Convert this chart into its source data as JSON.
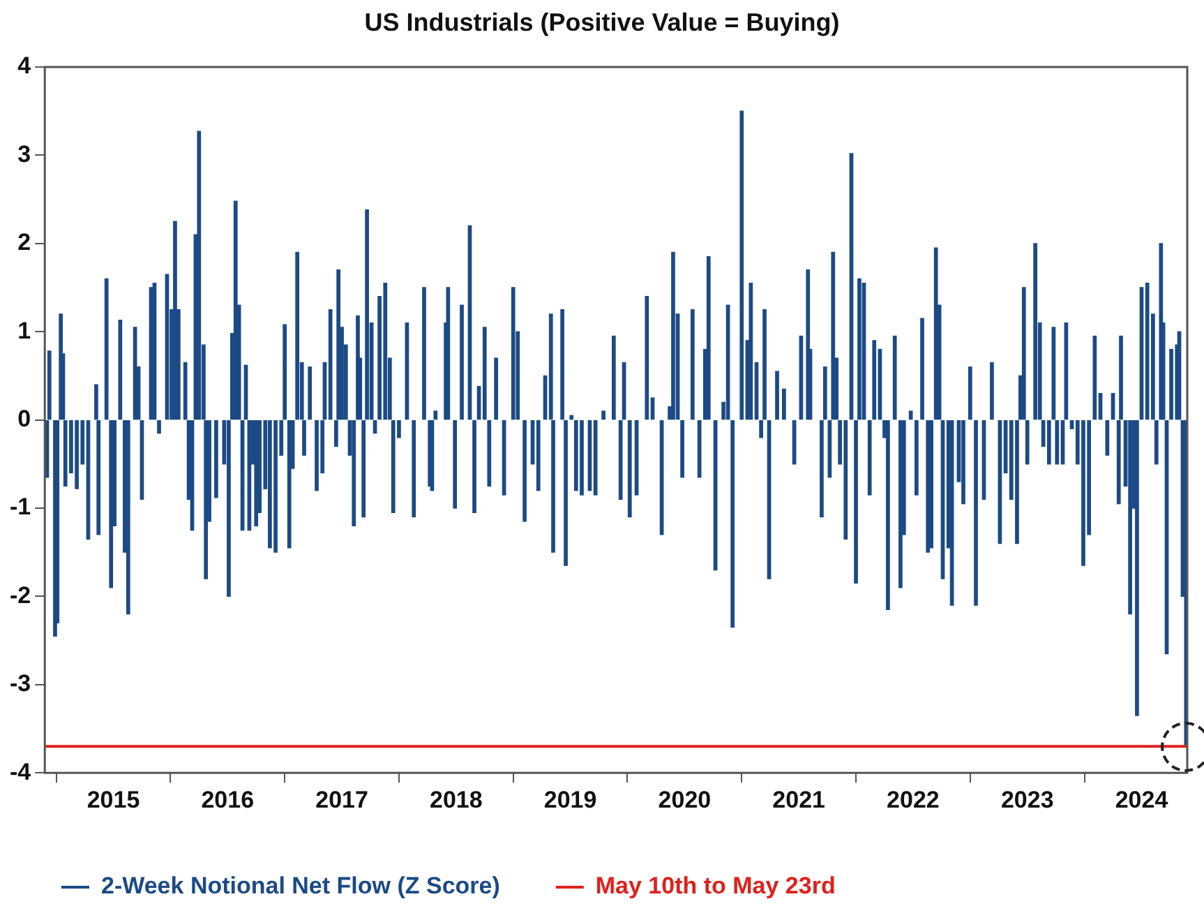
{
  "chart_data": {
    "type": "bar",
    "title": "US Industrials (Positive Value = Buying)",
    "x": [
      2014.42,
      2014.44,
      2014.49,
      2014.51,
      2014.54,
      2014.56,
      2014.58,
      2014.63,
      2014.68,
      2014.73,
      2014.78,
      2014.85,
      2014.87,
      2014.94,
      2014.98,
      2015.01,
      2015.06,
      2015.1,
      2015.13,
      2015.19,
      2015.22,
      2015.25,
      2015.33,
      2015.36,
      2015.4,
      2015.47,
      2015.51,
      2015.54,
      2015.57,
      2015.63,
      2015.66,
      2015.69,
      2015.72,
      2015.75,
      2015.79,
      2015.81,
      2015.84,
      2015.9,
      2015.97,
      2016.01,
      2016.04,
      2016.07,
      2016.1,
      2016.13,
      2016.16,
      2016.19,
      2016.22,
      2016.25,
      2016.28,
      2016.33,
      2016.37,
      2016.42,
      2016.47,
      2016.5,
      2016.54,
      2016.57,
      2016.61,
      2016.65,
      2016.67,
      2016.72,
      2016.78,
      2016.83,
      2016.85,
      2016.9,
      2016.95,
      2016.97,
      2017.0,
      2017.035,
      2017.07,
      2017.105,
      2017.14,
      2017.16,
      2017.19,
      2017.22,
      2017.26,
      2017.29,
      2017.33,
      2017.38,
      2017.42,
      2017.45,
      2017.5,
      2017.57,
      2017.63,
      2017.72,
      2017.77,
      2017.79,
      2017.82,
      2017.91,
      2017.93,
      2017.99,
      2018.05,
      2018.12,
      2018.16,
      2018.2,
      2018.25,
      2018.29,
      2018.35,
      2018.42,
      2018.5,
      2018.54,
      2018.6,
      2018.67,
      2018.72,
      2018.78,
      2018.83,
      2018.85,
      2018.93,
      2018.96,
      2019.01,
      2019.05,
      2019.1,
      2019.17,
      2019.22,
      2019.29,
      2019.38,
      2019.44,
      2019.47,
      2019.52,
      2019.58,
      2019.67,
      2019.72,
      2019.8,
      2019.87,
      2019.9,
      2019.94,
      2019.98,
      2020.07,
      2020.13,
      2020.18,
      2020.21,
      2020.27,
      2020.34,
      2020.38,
      2020.42,
      2020.5,
      2020.55,
      2020.58,
      2020.63,
      2020.67,
      2020.7,
      2020.74,
      2020.81,
      2020.87,
      2020.96,
      2021.02,
      2021.08,
      2021.1,
      2021.2,
      2021.23,
      2021.27,
      2021.3,
      2021.33,
      2021.36,
      2021.41,
      2021.46,
      2021.5,
      2021.53,
      2021.57,
      2021.62,
      2021.66,
      2021.71,
      2021.75,
      2021.78,
      2021.84,
      2021.89,
      2021.92,
      2021.98,
      2022.03,
      2022.08,
      2022.13,
      2022.16,
      2022.2,
      2022.23,
      2022.26,
      2022.31,
      2022.34,
      2022.4,
      2022.44,
      2022.5,
      2022.55,
      2022.62,
      2022.69,
      2022.76,
      2022.81,
      2022.86,
      2022.91,
      2022.94,
      2022.97,
      2023.0,
      2023.07,
      2023.11,
      2023.14,
      2023.19,
      2023.23,
      2023.26,
      2023.31,
      2023.34,
      2023.39,
      2023.44,
      2023.49,
      2023.54,
      2023.59,
      2023.64,
      2023.7,
      2023.75,
      2023.8,
      2023.82,
      2023.86,
      2023.9,
      2023.93,
      2023.96,
      2024.0,
      2024.05,
      2024.1,
      2024.13,
      2024.17,
      2024.19,
      2024.22,
      2024.26,
      2024.31,
      2024.33,
      2024.36,
      2024.39
    ],
    "series": [
      {
        "name": "2-Week Notional Net Flow (Z Score)",
        "color": "#1c4a86",
        "values": [
          -0.65,
          0.78,
          -2.45,
          -2.3,
          1.2,
          0.75,
          -0.75,
          -0.6,
          -0.78,
          -0.5,
          -1.35,
          0.4,
          -1.3,
          1.6,
          -1.9,
          -1.2,
          1.13,
          -1.5,
          -2.2,
          1.05,
          0.6,
          -0.9,
          1.5,
          1.55,
          -0.15,
          1.65,
          1.25,
          2.25,
          1.25,
          0.65,
          -0.9,
          -1.25,
          2.1,
          3.27,
          0.85,
          -1.8,
          -1.15,
          -0.88,
          -0.5,
          -2.0,
          0.98,
          2.48,
          1.3,
          -1.25,
          0.62,
          -1.25,
          -0.5,
          -1.2,
          -1.05,
          -0.78,
          -1.45,
          -1.5,
          -0.4,
          1.08,
          -1.45,
          -0.55,
          1.9,
          0.65,
          -0.4,
          0.6,
          -0.8,
          -0.6,
          0.65,
          1.25,
          -0.3,
          1.7,
          1.05,
          0.85,
          -0.4,
          -1.2,
          1.18,
          0.7,
          -1.1,
          2.38,
          1.1,
          -0.15,
          1.4,
          1.55,
          0.7,
          -1.05,
          -0.2,
          1.1,
          -1.1,
          1.5,
          -0.75,
          -0.8,
          0.1,
          1.1,
          1.5,
          -1.0,
          1.3,
          2.2,
          -1.05,
          0.38,
          1.05,
          -0.75,
          0.7,
          -0.85,
          1.5,
          1.0,
          -1.15,
          -0.5,
          -0.8,
          0.5,
          1.2,
          -1.5,
          1.25,
          -1.65,
          0.05,
          -0.8,
          -0.85,
          -0.8,
          -0.85,
          0.1,
          0.95,
          -0.9,
          0.65,
          -1.1,
          -0.85,
          1.4,
          0.25,
          -1.3,
          0.15,
          1.9,
          1.2,
          -0.65,
          1.25,
          -0.65,
          0.8,
          1.85,
          -1.7,
          0.2,
          1.3,
          -2.35,
          3.5,
          0.9,
          1.55,
          0.65,
          -0.2,
          1.25,
          -1.8,
          0.55,
          0.35,
          -0.5,
          0.95,
          1.7,
          0.8,
          -1.1,
          0.6,
          -0.65,
          1.9,
          0.7,
          -0.5,
          -1.35,
          3.02,
          -1.85,
          1.6,
          1.55,
          -0.85,
          0.9,
          0.8,
          -0.2,
          -2.15,
          0.95,
          -1.9,
          -1.3,
          0.1,
          -0.85,
          1.15,
          -1.5,
          -1.45,
          1.95,
          1.3,
          -1.8,
          -1.45,
          -2.1,
          -0.7,
          -0.95,
          0.6,
          -2.1,
          -0.9,
          0.65,
          -1.4,
          -0.6,
          -0.9,
          -1.4,
          0.5,
          1.5,
          -0.5,
          2.0,
          1.1,
          -0.3,
          -0.5,
          1.05,
          -0.5,
          -0.5,
          1.1,
          -0.1,
          -0.5,
          -1.65,
          -1.3,
          0.95,
          0.3,
          -0.4,
          0.3,
          -0.95,
          0.95,
          -0.75,
          -2.2,
          -1.0,
          -3.35,
          1.5,
          1.55,
          1.2,
          -0.5,
          2.0,
          1.1,
          -2.65,
          0.8,
          0.85,
          1.0,
          -2.0,
          -3.7
        ]
      }
    ],
    "xlim": [
      2014.4,
      2024.4
    ],
    "xticks": [
      2015,
      2016,
      2017,
      2018,
      2019,
      2020,
      2021,
      2022,
      2023,
      2024
    ],
    "ylim": [
      -4,
      4
    ],
    "yticks": [
      -4,
      -3,
      -2,
      -1,
      0,
      1,
      2,
      3,
      4
    ],
    "ref_lines": [
      {
        "axis": "y",
        "value": -3.7,
        "label": "May 10th to May 23rd",
        "color": "#e0201b"
      }
    ],
    "grid": false,
    "legend": "bottom"
  }
}
